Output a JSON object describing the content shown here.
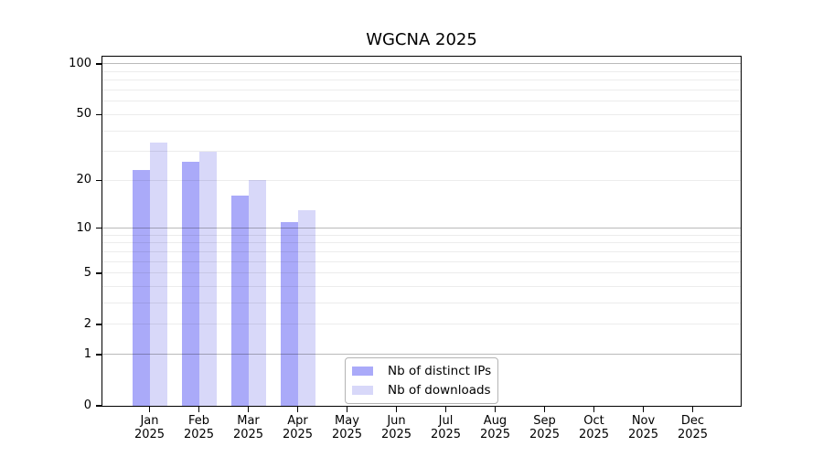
{
  "title": "WGCNA 2025",
  "chart_data": {
    "type": "bar",
    "title": "WGCNA 2025",
    "xlabel": "",
    "ylabel": "",
    "x_month_labels": [
      "Jan",
      "Feb",
      "Mar",
      "Apr",
      "May",
      "Jun",
      "Jul",
      "Aug",
      "Sep",
      "Oct",
      "Nov",
      "Dec"
    ],
    "x_year_label": "2025",
    "series": [
      {
        "name": "Nb of distinct IPs",
        "color": "#aaaaf9",
        "values": [
          23,
          26,
          16,
          11,
          null,
          null,
          null,
          null,
          null,
          null,
          null,
          null
        ]
      },
      {
        "name": "Nb of downloads",
        "color": "#d8d8f9",
        "values": [
          34,
          30,
          20,
          13,
          null,
          null,
          null,
          null,
          null,
          null,
          null,
          null
        ]
      }
    ],
    "yscale": "log1p",
    "ylim": [
      0,
      110
    ],
    "y_tick_values": [
      0,
      1,
      2,
      5,
      10,
      20,
      50,
      100
    ],
    "y_major_gridlines": [
      1,
      10,
      100
    ],
    "y_minor_gridlines": [
      2,
      3,
      4,
      5,
      6,
      7,
      8,
      9,
      20,
      30,
      40,
      50,
      60,
      70,
      80,
      90
    ],
    "grid": true,
    "legend_position": "inside-bottom-center-left"
  },
  "colors": {
    "distinct_ips": "#aaaaf9",
    "downloads": "#d8d8f9",
    "major_grid": "rgba(0,0,0,0.27)",
    "minor_grid": "rgba(0,0,0,0.075)",
    "axis": "#000000",
    "background": "#ffffff"
  }
}
